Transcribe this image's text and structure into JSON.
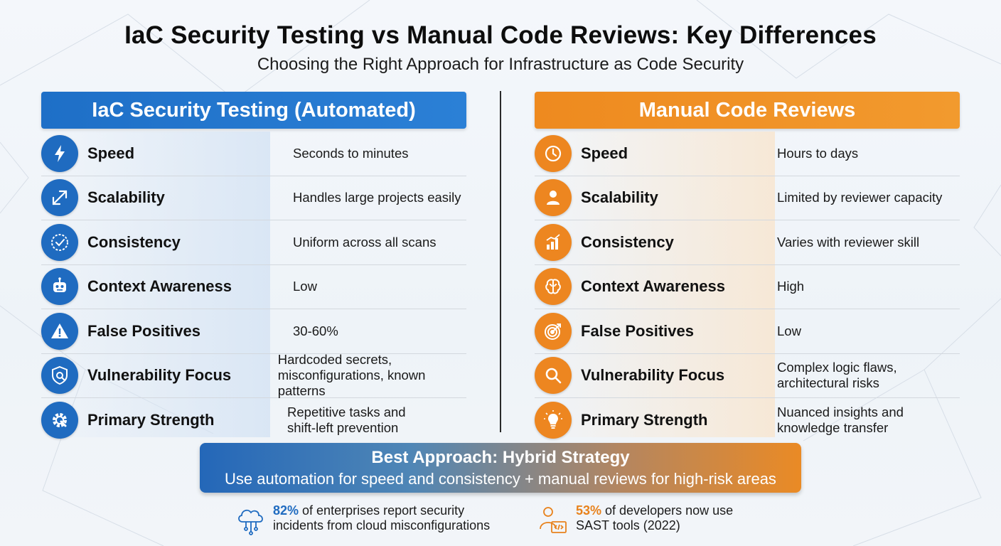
{
  "title": "IaC Security Testing vs Manual Code Reviews: Key Differences",
  "subtitle": "Choosing the Right Approach for Infrastructure as Code Security",
  "colors": {
    "blue": "#1f6bc0",
    "orange": "#ed8620"
  },
  "automated": {
    "header": "IaC Security Testing (Automated)",
    "rows": [
      {
        "icon": "lightning-icon",
        "label": "Speed",
        "value": "Seconds to minutes"
      },
      {
        "icon": "expand-arrows-icon",
        "label": "Scalability",
        "value": "Handles large projects easily"
      },
      {
        "icon": "check-badge-icon",
        "label": "Consistency",
        "value": "Uniform across all scans"
      },
      {
        "icon": "robot-icon",
        "label": "Context Awareness",
        "value": "Low"
      },
      {
        "icon": "warning-icon",
        "label": "False Positives",
        "value": "30-60%"
      },
      {
        "icon": "shield-search-icon",
        "label": "Vulnerability Focus",
        "value": "Hardcoded secrets,\nmisconfigurations, known patterns"
      },
      {
        "icon": "gear-icon",
        "label": "Primary Strength",
        "value": "Repetitive tasks and\nshift-left prevention"
      }
    ]
  },
  "manual": {
    "header": "Manual Code Reviews",
    "rows": [
      {
        "icon": "clock-icon",
        "label": "Speed",
        "value": "Hours to days"
      },
      {
        "icon": "person-icon",
        "label": "Scalability",
        "value": "Limited by reviewer capacity"
      },
      {
        "icon": "bar-chart-icon",
        "label": "Consistency",
        "value": "Varies with reviewer skill"
      },
      {
        "icon": "brain-icon",
        "label": "Context Awareness",
        "value": "High"
      },
      {
        "icon": "target-icon",
        "label": "False Positives",
        "value": "Low"
      },
      {
        "icon": "magnifier-icon",
        "label": "Vulnerability Focus",
        "value": "Complex logic flaws,\narchitectural risks"
      },
      {
        "icon": "lightbulb-icon",
        "label": "Primary Strength",
        "value": "Nuanced insights and\nknowledge transfer"
      }
    ]
  },
  "banner": {
    "title": "Best Approach: Hybrid Strategy",
    "subtitle": "Use automation for speed and consistency + manual reviews for high-risk areas"
  },
  "stats": [
    {
      "icon": "cloud-icon",
      "percent": "82%",
      "line1": " of enterprises report security",
      "line2": "incidents from cloud misconfigurations"
    },
    {
      "icon": "developer-icon",
      "percent": "53%",
      "line1": " of developers now use",
      "line2": "SAST tools (2022)"
    }
  ]
}
